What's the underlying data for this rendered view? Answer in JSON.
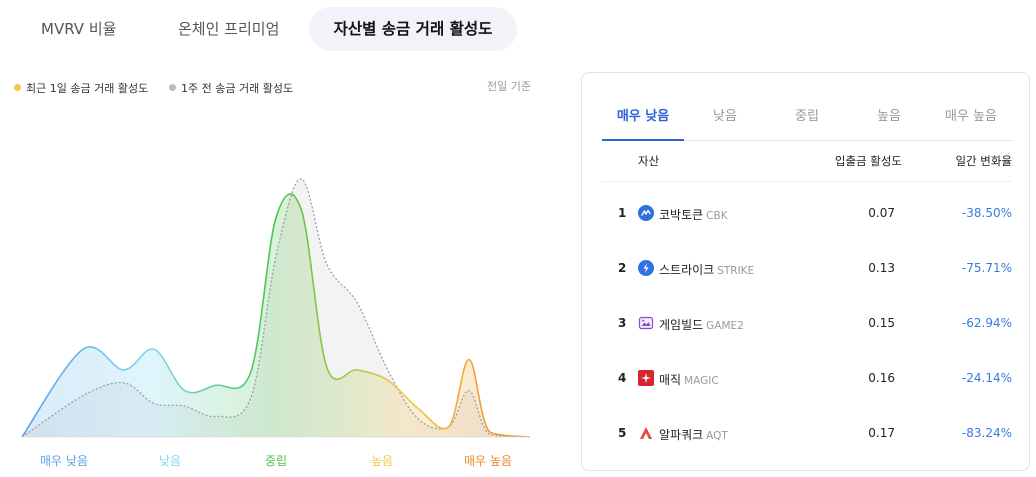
{
  "tabs": [
    {
      "label": "MVRV 비율",
      "active": false
    },
    {
      "label": "온체인 프리미엄",
      "active": false
    },
    {
      "label": "자산별 송금 거래 활성도",
      "active": true
    }
  ],
  "legend": {
    "current": {
      "label": "최근 1일 송금 거래 활성도",
      "color": "#f6c54a"
    },
    "previous": {
      "label": "1주 전 송금 거래 활성도",
      "color": "#b8bcc4"
    }
  },
  "basis_label": "전일 기준",
  "chart_data": {
    "type": "area",
    "x": [
      0,
      0.12,
      0.2,
      0.26,
      0.32,
      0.38,
      0.45,
      0.5,
      0.55,
      0.6,
      0.66,
      0.72,
      0.78,
      0.84,
      0.88,
      0.92,
      1.0
    ],
    "series": [
      {
        "name": "최근 1일 송금 거래 활성도",
        "values": [
          0,
          0.34,
          0.26,
          0.34,
          0.18,
          0.2,
          0.25,
          0.85,
          0.88,
          0.27,
          0.26,
          0.22,
          0.11,
          0.04,
          0.3,
          0.02,
          0
        ]
      },
      {
        "name": "1주 전 송금 거래 활성도",
        "values": [
          0,
          0.16,
          0.21,
          0.13,
          0.12,
          0.08,
          0.15,
          0.7,
          1.0,
          0.67,
          0.52,
          0.26,
          0.07,
          0.04,
          0.18,
          0.01,
          0
        ]
      }
    ],
    "categories": [
      {
        "label": "매우 낮음",
        "color": "#5aa0e6"
      },
      {
        "label": "낮음",
        "color": "#7fd8f0"
      },
      {
        "label": "중립",
        "color": "#4ac34a"
      },
      {
        "label": "높음",
        "color": "#f3c84a"
      },
      {
        "label": "매우 높음",
        "color": "#f0842c"
      }
    ],
    "ylim": [
      0,
      1
    ],
    "grid": false,
    "legend_position": "top-left"
  },
  "panel": {
    "tabs": [
      "매우 낮음",
      "낮음",
      "중립",
      "높음",
      "매우 높음"
    ],
    "active_tab": 0,
    "columns": {
      "asset": "자산",
      "activity": "입출금 활성도",
      "change": "일간 변화율"
    },
    "rows": [
      {
        "rank": "1",
        "name": "코박토큰",
        "symbol": "CBK",
        "activity": "0.07",
        "change": "-38.50%",
        "icon": "cbk-icon",
        "icon_color": "#2f6fe0"
      },
      {
        "rank": "2",
        "name": "스트라이크",
        "symbol": "STRIKE",
        "activity": "0.13",
        "change": "-75.71%",
        "icon": "strike-icon",
        "icon_color": "#2f72e8"
      },
      {
        "rank": "3",
        "name": "게임빌드",
        "symbol": "GAME2",
        "activity": "0.15",
        "change": "-62.94%",
        "icon": "game2-icon",
        "icon_color": "#8a4fc8"
      },
      {
        "rank": "4",
        "name": "매직",
        "symbol": "MAGIC",
        "activity": "0.16",
        "change": "-24.14%",
        "icon": "magic-icon",
        "icon_color": "#d8262e"
      },
      {
        "rank": "5",
        "name": "알파쿼크",
        "symbol": "AQT",
        "activity": "0.17",
        "change": "-83.24%",
        "icon": "aqt-icon",
        "icon_color": "#e2483c"
      }
    ]
  }
}
